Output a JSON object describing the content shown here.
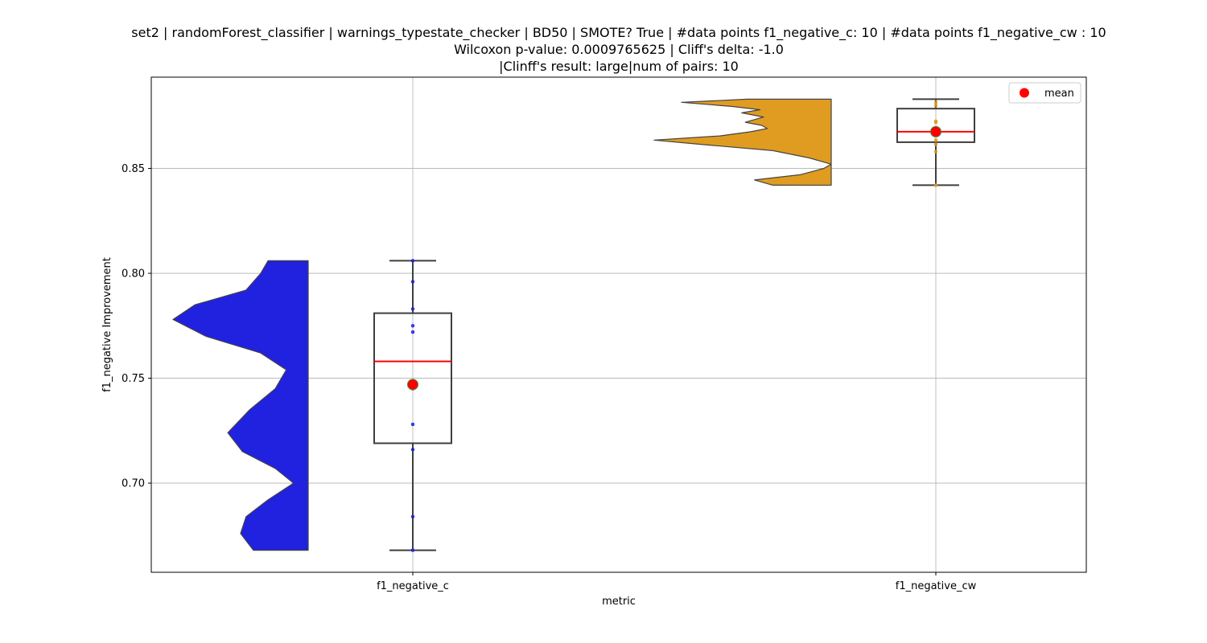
{
  "chart_data": {
    "type": "box",
    "title_lines": [
      "set2 | randomForest_classifier | warnings_typestate_checker | BD50 | SMOTE? True | #data points f1_negative_c: 10 | #data points f1_negative_cw : 10",
      "Wilcoxon p-value: 0.0009765625 | Cliff's delta: -1.0",
      "|Clinff's result: large|num of pairs: 10"
    ],
    "xlabel": "metric",
    "ylabel": "f1_negative Improvement",
    "categories": [
      "f1_negative_c",
      "f1_negative_cw"
    ],
    "ylim": [
      0.6575,
      0.8935
    ],
    "yticks": [
      0.7,
      0.75,
      0.8,
      0.85
    ],
    "ytick_labels": [
      "0.70",
      "0.75",
      "0.80",
      "0.85"
    ],
    "grid": true,
    "legend": {
      "position": "top-right",
      "entries": [
        {
          "label": "mean",
          "color": "#ff0000"
        }
      ]
    },
    "series": [
      {
        "category": "f1_negative_c",
        "color": "#2121e0",
        "box": {
          "whisker_low": 0.668,
          "q1": 0.719,
          "median": 0.758,
          "q3": 0.781,
          "whisker_high": 0.806
        },
        "mean": 0.747,
        "points": [
          0.668,
          0.684,
          0.716,
          0.728,
          0.745,
          0.772,
          0.775,
          0.783,
          0.796,
          0.806
        ],
        "violin_profile": [
          [
            0.806,
            0.22
          ],
          [
            0.8,
            0.26
          ],
          [
            0.792,
            0.34
          ],
          [
            0.785,
            0.62
          ],
          [
            0.778,
            0.74
          ],
          [
            0.77,
            0.56
          ],
          [
            0.762,
            0.26
          ],
          [
            0.754,
            0.12
          ],
          [
            0.745,
            0.18
          ],
          [
            0.735,
            0.32
          ],
          [
            0.724,
            0.44
          ],
          [
            0.715,
            0.36
          ],
          [
            0.707,
            0.18
          ],
          [
            0.7,
            0.08
          ],
          [
            0.692,
            0.22
          ],
          [
            0.684,
            0.34
          ],
          [
            0.676,
            0.37
          ],
          [
            0.668,
            0.3
          ]
        ]
      },
      {
        "category": "f1_negative_cw",
        "color": "#e09c21",
        "box": {
          "whisker_low": 0.842,
          "q1": 0.8625,
          "median": 0.8675,
          "q3": 0.8785,
          "whisker_high": 0.883
        },
        "mean": 0.8675,
        "points": [
          0.842,
          0.858,
          0.8615,
          0.8635,
          0.866,
          0.8685,
          0.872,
          0.8725,
          0.88,
          0.8815
        ],
        "violin_profile": [
          [
            0.883,
            0.46
          ],
          [
            0.8815,
            0.82
          ],
          [
            0.8795,
            0.54
          ],
          [
            0.878,
            0.39
          ],
          [
            0.8765,
            0.49
          ],
          [
            0.8745,
            0.37
          ],
          [
            0.872,
            0.47
          ],
          [
            0.8705,
            0.38
          ],
          [
            0.869,
            0.35
          ],
          [
            0.8675,
            0.44
          ],
          [
            0.8655,
            0.61
          ],
          [
            0.8635,
            0.97
          ],
          [
            0.8615,
            0.72
          ],
          [
            0.8585,
            0.32
          ],
          [
            0.855,
            0.12
          ],
          [
            0.852,
            0.0
          ],
          [
            0.85,
            0.04
          ],
          [
            0.847,
            0.17
          ],
          [
            0.8445,
            0.42
          ],
          [
            0.842,
            0.32
          ]
        ]
      }
    ]
  }
}
